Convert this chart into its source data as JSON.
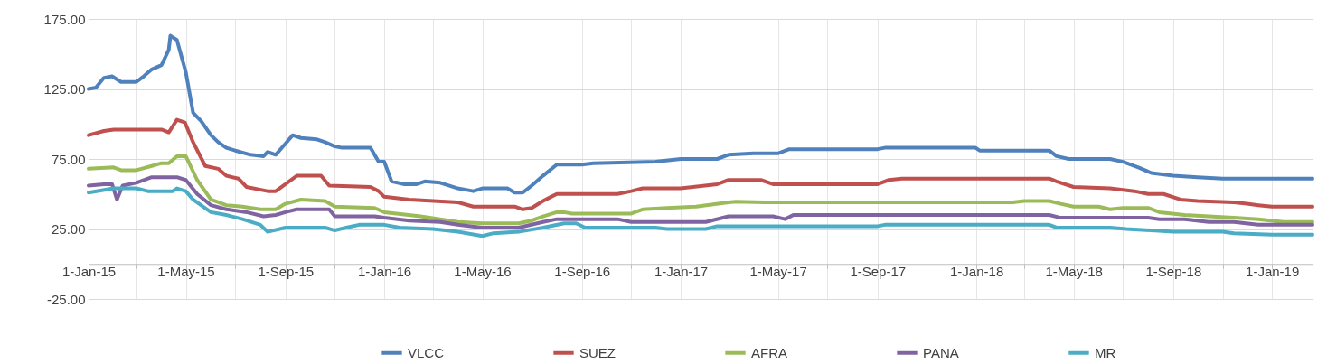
{
  "chart_data": {
    "type": "line",
    "xlim": [
      "2015-01-01",
      "2019-02-20"
    ],
    "ylim": [
      -25,
      175
    ],
    "yticks": [
      {
        "value": -25,
        "label": "-25.00"
      },
      {
        "value": 25,
        "label": "25.00"
      },
      {
        "value": 75,
        "label": "75.00"
      },
      {
        "value": 125,
        "label": "125.00"
      },
      {
        "value": 175,
        "label": "175.00"
      }
    ],
    "xticks": [
      {
        "value": "2015-01-01",
        "label": "1-Jan-15"
      },
      {
        "value": "2015-03-01",
        "label": null
      },
      {
        "value": "2015-05-01",
        "label": "1-May-15"
      },
      {
        "value": "2015-07-01",
        "label": null
      },
      {
        "value": "2015-09-01",
        "label": "1-Sep-15"
      },
      {
        "value": "2015-11-01",
        "label": null
      },
      {
        "value": "2016-01-01",
        "label": "1-Jan-16"
      },
      {
        "value": "2016-03-01",
        "label": null
      },
      {
        "value": "2016-05-01",
        "label": "1-May-16"
      },
      {
        "value": "2016-07-01",
        "label": null
      },
      {
        "value": "2016-09-01",
        "label": "1-Sep-16"
      },
      {
        "value": "2016-11-01",
        "label": null
      },
      {
        "value": "2017-01-01",
        "label": "1-Jan-17"
      },
      {
        "value": "2017-03-01",
        "label": null
      },
      {
        "value": "2017-05-01",
        "label": "1-May-17"
      },
      {
        "value": "2017-07-01",
        "label": null
      },
      {
        "value": "2017-09-01",
        "label": "1-Sep-17"
      },
      {
        "value": "2017-11-01",
        "label": null
      },
      {
        "value": "2018-01-01",
        "label": "1-Jan-18"
      },
      {
        "value": "2018-03-01",
        "label": null
      },
      {
        "value": "2018-05-01",
        "label": "1-May-18"
      },
      {
        "value": "2018-07-01",
        "label": null
      },
      {
        "value": "2018-09-01",
        "label": "1-Sep-18"
      },
      {
        "value": "2018-11-01",
        "label": null
      },
      {
        "value": "2019-01-01",
        "label": "1-Jan-19"
      }
    ],
    "grid": true,
    "legend": "bottom",
    "marker": "none",
    "line_style": "solid",
    "series": [
      {
        "name": "VLCC",
        "color": "#4f81bd",
        "x": [
          "2015-01-01",
          "2015-01-10",
          "2015-01-20",
          "2015-01-30",
          "2015-02-10",
          "2015-03-01",
          "2015-03-10",
          "2015-03-20",
          "2015-04-01",
          "2015-04-10",
          "2015-04-12",
          "2015-04-20",
          "2015-05-01",
          "2015-05-10",
          "2015-05-20",
          "2015-06-01",
          "2015-06-10",
          "2015-06-20",
          "2015-07-01",
          "2015-07-20",
          "2015-08-05",
          "2015-08-10",
          "2015-08-20",
          "2015-09-01",
          "2015-09-10",
          "2015-09-20",
          "2015-10-10",
          "2015-10-20",
          "2015-11-01",
          "2015-11-10",
          "2015-12-15",
          "2015-12-25",
          "2016-01-01",
          "2016-01-10",
          "2016-01-25",
          "2016-02-10",
          "2016-02-20",
          "2016-03-10",
          "2016-04-01",
          "2016-04-20",
          "2016-05-01",
          "2016-06-01",
          "2016-06-10",
          "2016-06-20",
          "2016-07-01",
          "2016-07-15",
          "2016-08-01",
          "2016-08-10",
          "2016-09-01",
          "2016-09-15",
          "2016-12-01",
          "2017-01-01",
          "2017-02-15",
          "2017-03-01",
          "2017-04-01",
          "2017-05-01",
          "2017-05-15",
          "2017-09-01",
          "2017-09-10",
          "2017-12-31",
          "2018-01-05",
          "2018-04-01",
          "2018-04-10",
          "2018-04-25",
          "2018-06-15",
          "2018-07-01",
          "2018-07-20",
          "2018-08-05",
          "2018-09-01",
          "2018-10-01",
          "2018-11-01",
          "2019-01-01",
          "2019-02-20"
        ],
        "values": [
          125,
          126,
          133,
          134,
          130,
          130,
          134,
          139,
          142,
          153,
          163,
          160,
          137,
          108,
          102,
          92,
          87,
          83,
          81,
          78,
          77,
          80,
          78,
          86,
          92,
          90,
          89,
          87,
          84,
          83,
          83,
          73,
          73,
          59,
          57,
          57,
          59,
          58,
          54,
          52,
          54,
          54,
          51,
          51,
          56,
          63,
          71,
          71,
          71,
          72,
          73,
          75,
          75,
          78,
          79,
          79,
          82,
          82,
          83,
          83,
          81,
          81,
          77,
          75,
          75,
          73,
          69,
          65,
          63,
          62,
          61,
          61,
          61
        ]
      },
      {
        "name": "SUEZ",
        "color": "#c0504d",
        "x": [
          "2015-01-01",
          "2015-01-20",
          "2015-02-01",
          "2015-04-01",
          "2015-04-10",
          "2015-04-20",
          "2015-04-30",
          "2015-05-10",
          "2015-05-25",
          "2015-06-10",
          "2015-06-20",
          "2015-07-05",
          "2015-07-15",
          "2015-08-10",
          "2015-08-20",
          "2015-09-01",
          "2015-09-15",
          "2015-10-15",
          "2015-10-25",
          "2015-12-15",
          "2015-12-25",
          "2016-01-01",
          "2016-02-01",
          "2016-04-01",
          "2016-04-20",
          "2016-06-10",
          "2016-06-20",
          "2016-07-01",
          "2016-07-15",
          "2016-07-25",
          "2016-08-01",
          "2016-10-15",
          "2016-11-01",
          "2016-11-15",
          "2016-12-01",
          "2017-01-01",
          "2017-02-15",
          "2017-03-01",
          "2017-04-10",
          "2017-04-25",
          "2017-09-01",
          "2017-09-15",
          "2017-10-01",
          "2018-04-01",
          "2018-04-10",
          "2018-05-01",
          "2018-06-15",
          "2018-07-15",
          "2018-08-01",
          "2018-08-20",
          "2018-09-10",
          "2018-10-01",
          "2018-11-15",
          "2018-12-01",
          "2018-12-15",
          "2019-01-01",
          "2019-02-20"
        ],
        "values": [
          92,
          95,
          96,
          96,
          94,
          103,
          101,
          87,
          70,
          68,
          63,
          61,
          55,
          52,
          52,
          57,
          63,
          63,
          56,
          55,
          52,
          48,
          46,
          44,
          41,
          41,
          39,
          40,
          45,
          48,
          50,
          50,
          52,
          54,
          54,
          54,
          57,
          60,
          60,
          57,
          57,
          60,
          61,
          61,
          59,
          55,
          54,
          52,
          50,
          50,
          46,
          45,
          44,
          43,
          42,
          41,
          41
        ]
      },
      {
        "name": "AFRA",
        "color": "#9bbb59",
        "x": [
          "2015-01-01",
          "2015-02-01",
          "2015-02-10",
          "2015-03-01",
          "2015-03-20",
          "2015-04-01",
          "2015-04-10",
          "2015-04-20",
          "2015-05-01",
          "2015-05-15",
          "2015-06-01",
          "2015-06-20",
          "2015-07-10",
          "2015-08-01",
          "2015-08-20",
          "2015-09-01",
          "2015-09-20",
          "2015-10-20",
          "2015-11-01",
          "2015-12-20",
          "2016-01-01",
          "2016-02-15",
          "2016-03-10",
          "2016-04-01",
          "2016-05-01",
          "2016-06-15",
          "2016-07-01",
          "2016-07-15",
          "2016-08-01",
          "2016-08-10",
          "2016-08-20",
          "2016-11-01",
          "2016-11-15",
          "2016-12-15",
          "2017-01-20",
          "2017-03-01",
          "2017-03-10",
          "2017-04-15",
          "2017-12-31",
          "2018-01-15",
          "2018-02-15",
          "2018-03-01",
          "2018-04-01",
          "2018-04-15",
          "2018-05-01",
          "2018-06-01",
          "2018-06-15",
          "2018-07-01",
          "2018-08-01",
          "2018-08-15",
          "2018-09-15",
          "2018-10-15",
          "2018-11-15",
          "2018-12-15",
          "2019-01-15",
          "2019-02-20"
        ],
        "values": [
          68,
          69,
          67,
          67,
          70,
          72,
          72,
          77,
          77,
          60,
          46,
          42,
          41,
          39,
          39,
          43,
          46,
          45,
          41,
          40,
          37,
          34,
          32,
          30,
          29,
          29,
          31,
          34,
          37,
          37,
          36,
          36,
          39,
          40,
          41,
          44,
          44.5,
          44,
          44,
          44,
          44,
          45,
          45,
          43,
          41,
          41,
          39,
          40,
          40,
          37,
          35,
          34,
          33,
          32,
          30,
          30
        ]
      },
      {
        "name": "PANA",
        "color": "#8064a2",
        "x": [
          "2015-01-01",
          "2015-01-20",
          "2015-01-30",
          "2015-02-05",
          "2015-02-12",
          "2015-03-01",
          "2015-03-20",
          "2015-04-20",
          "2015-05-01",
          "2015-05-15",
          "2015-06-01",
          "2015-06-20",
          "2015-07-15",
          "2015-08-05",
          "2015-08-20",
          "2015-09-01",
          "2015-09-15",
          "2015-10-25",
          "2015-11-01",
          "2015-12-20",
          "2016-01-01",
          "2016-02-01",
          "2016-03-10",
          "2016-04-01",
          "2016-05-01",
          "2016-06-15",
          "2016-07-15",
          "2016-08-01",
          "2016-10-15",
          "2016-11-01",
          "2017-02-01",
          "2017-03-01",
          "2017-04-25",
          "2017-05-10",
          "2017-05-20",
          "2018-04-01",
          "2018-04-15",
          "2018-08-01",
          "2018-08-15",
          "2018-09-15",
          "2018-10-15",
          "2018-11-15",
          "2018-12-15",
          "2019-01-01",
          "2019-02-20"
        ],
        "values": [
          56,
          57,
          57,
          46,
          56,
          58,
          62,
          62,
          60,
          50,
          42,
          39,
          37,
          34,
          35,
          37,
          39,
          39,
          34,
          34,
          33,
          31,
          30,
          28,
          26,
          26,
          30,
          32,
          32,
          30,
          30,
          34,
          34,
          32,
          35,
          35,
          33,
          33,
          32,
          32,
          30,
          30,
          28,
          28,
          28
        ]
      },
      {
        "name": "MR",
        "color": "#4bacc6",
        "x": [
          "2015-01-01",
          "2015-02-01",
          "2015-03-01",
          "2015-03-15",
          "2015-04-01",
          "2015-04-15",
          "2015-04-20",
          "2015-05-01",
          "2015-05-10",
          "2015-06-01",
          "2015-06-20",
          "2015-07-10",
          "2015-08-01",
          "2015-08-10",
          "2015-08-25",
          "2015-09-01",
          "2015-10-20",
          "2015-11-01",
          "2015-11-15",
          "2015-12-01",
          "2016-01-01",
          "2016-01-20",
          "2016-03-01",
          "2016-04-01",
          "2016-05-01",
          "2016-05-15",
          "2016-06-15",
          "2016-07-15",
          "2016-08-10",
          "2016-08-25",
          "2016-09-05",
          "2016-12-01",
          "2016-12-15",
          "2017-02-01",
          "2017-02-15",
          "2017-09-01",
          "2017-09-10",
          "2018-04-01",
          "2018-04-10",
          "2018-06-15",
          "2018-07-05",
          "2018-08-05",
          "2018-09-01",
          "2018-11-01",
          "2018-11-15",
          "2019-01-01",
          "2019-02-20"
        ],
        "values": [
          51,
          54,
          54,
          52,
          52,
          52,
          54,
          52,
          46,
          37,
          35,
          32,
          28,
          23,
          25,
          26,
          26,
          24,
          26,
          28,
          28,
          26,
          25,
          23,
          20,
          22,
          23,
          26,
          29,
          29,
          26,
          26,
          25,
          25,
          27,
          27,
          28,
          28,
          26,
          26,
          25,
          24,
          23,
          23,
          22,
          21,
          21
        ]
      }
    ]
  }
}
